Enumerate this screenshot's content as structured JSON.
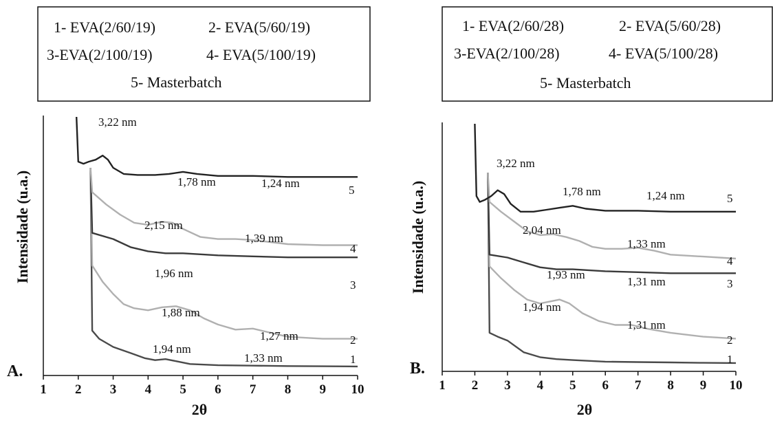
{
  "chart_data": [
    {
      "type": "line",
      "panel_label": "A.",
      "xlabel": "2θ",
      "ylabel": "Intensidade (u.a.)",
      "xlim": [
        1,
        10
      ],
      "xticks": [
        "1",
        "2",
        "3",
        "4",
        "5",
        "6",
        "7",
        "8",
        "9",
        "10"
      ],
      "legend": [
        "1- EVA(2/60/19)",
        "2- EVA(5/60/19)",
        "3-EVA(2/100/19)",
        "4- EVA(5/100/19)",
        "5- Masterbatch"
      ],
      "series": [
        {
          "name": "1",
          "color": "#4a4a4a",
          "x": [
            2.35,
            2.4,
            2.6,
            3.0,
            3.5,
            3.9,
            4.2,
            4.5,
            4.8,
            5.2,
            6.0,
            7.0,
            8.0,
            9.0,
            10.0
          ],
          "y": [
            100,
            20,
            16,
            12,
            9,
            6.5,
            5.5,
            6.0,
            5.0,
            3.6,
            3.0,
            2.8,
            2.6,
            2.5,
            2.4
          ]
        },
        {
          "name": "2",
          "color": "#b0b0b0",
          "x": [
            2.35,
            2.4,
            2.7,
            3.0,
            3.3,
            3.6,
            4.0,
            4.4,
            4.8,
            5.2,
            5.6,
            6.0,
            6.5,
            7.0,
            7.5,
            8.0,
            9.0,
            10.0
          ],
          "y": [
            100,
            52,
            44,
            38,
            33,
            31,
            30,
            31.5,
            32,
            30,
            26,
            23,
            20.5,
            21,
            19,
            17,
            16,
            16
          ]
        },
        {
          "name": "3",
          "color": "#3a3a3a",
          "x": [
            2.35,
            2.4,
            3.0,
            3.5,
            4.0,
            4.5,
            5.0,
            5.5,
            6.0,
            7.0,
            8.0,
            9.0,
            10.0
          ],
          "y": [
            100,
            68,
            65,
            61,
            59,
            58,
            58,
            57.5,
            57,
            56.5,
            56,
            56,
            56
          ]
        },
        {
          "name": "4",
          "color": "#b0b0b0",
          "x": [
            2.35,
            2.4,
            2.8,
            3.2,
            3.6,
            4.0,
            4.4,
            4.7,
            5.0,
            5.5,
            6.0,
            6.5,
            7.0,
            7.5,
            8.0,
            9.0,
            10.0
          ],
          "y": [
            100,
            88,
            82,
            77,
            73,
            72,
            73.5,
            73,
            70,
            66,
            65,
            65,
            64.5,
            63.5,
            62.5,
            62,
            62
          ]
        },
        {
          "name": "5",
          "color": "#222222",
          "x": [
            1.95,
            2.0,
            2.15,
            2.3,
            2.5,
            2.7,
            2.85,
            3.0,
            3.3,
            3.7,
            4.2,
            4.6,
            5.0,
            5.4,
            6.0,
            7.0,
            8.0,
            9.0,
            10.0
          ],
          "y": [
            125,
            103,
            102,
            103,
            104,
            106,
            104,
            100,
            97,
            96.5,
            96.5,
            97,
            98,
            97,
            96,
            96,
            95.5,
            95.5,
            95.5
          ]
        }
      ],
      "annotations": [
        "3,22 nm",
        "1,78 nm",
        "1,24 nm",
        "2,15 nm",
        "1,39 nm",
        "1,96 nm",
        "1,88 nm",
        "1,27 nm",
        "1,94 nm",
        "1,33  nm"
      ],
      "end_labels": [
        "5",
        "4",
        "3",
        "2",
        "1"
      ]
    },
    {
      "type": "line",
      "panel_label": "B.",
      "xlabel": "2θ",
      "ylabel": "Intensidade (u.a.)",
      "xlim": [
        1,
        10
      ],
      "xticks": [
        "1",
        "2",
        "3",
        "4",
        "5",
        "6",
        "7",
        "8",
        "9",
        "10"
      ],
      "legend": [
        "1- EVA(2/60/28)",
        "2- EVA(5/60/28)",
        "3-EVA(2/100/28)",
        "4- EVA(5/100/28)",
        "5- Masterbatch"
      ],
      "series": [
        {
          "name": "1",
          "color": "#4a4a4a",
          "x": [
            2.4,
            2.45,
            2.7,
            3.0,
            3.5,
            4.0,
            4.5,
            5.0,
            6.0,
            7.0,
            8.0,
            9.0,
            10.0
          ],
          "y": [
            100,
            18,
            16,
            14,
            8,
            5.5,
            4.5,
            4.0,
            3.2,
            3.0,
            2.8,
            2.6,
            2.5
          ]
        },
        {
          "name": "2",
          "color": "#b0b0b0",
          "x": [
            2.4,
            2.45,
            2.8,
            3.2,
            3.6,
            4.0,
            4.3,
            4.6,
            4.9,
            5.3,
            5.8,
            6.3,
            6.8,
            7.3,
            8.0,
            9.0,
            10.0
          ],
          "y": [
            100,
            52,
            46,
            40,
            35,
            33,
            34,
            35,
            33,
            28,
            24,
            22,
            22,
            20,
            18,
            16,
            15
          ]
        },
        {
          "name": "3",
          "color": "#3a3a3a",
          "x": [
            2.4,
            2.45,
            3.0,
            3.5,
            4.0,
            4.5,
            5.0,
            6.0,
            7.0,
            8.0,
            9.0,
            10.0
          ],
          "y": [
            100,
            58,
            56.5,
            54,
            51.5,
            50.5,
            50.5,
            49.5,
            49,
            48.5,
            48.5,
            48.5
          ]
        },
        {
          "name": "4",
          "color": "#b0b0b0",
          "x": [
            2.4,
            2.45,
            2.8,
            3.2,
            3.6,
            4.0,
            4.4,
            4.8,
            5.2,
            5.6,
            6.0,
            6.5,
            7.0,
            7.5,
            8.0,
            9.0,
            10.0
          ],
          "y": [
            100,
            85,
            80,
            75,
            70,
            68,
            68.5,
            67,
            65,
            62,
            61,
            61,
            61.5,
            60,
            58,
            57,
            56
          ]
        },
        {
          "name": "5",
          "color": "#222222",
          "x": [
            2.0,
            2.05,
            2.15,
            2.3,
            2.5,
            2.7,
            2.9,
            3.1,
            3.4,
            3.8,
            4.2,
            4.6,
            5.0,
            5.4,
            6.0,
            7.0,
            8.0,
            9.0,
            10.0
          ],
          "y": [
            125,
            88,
            85,
            86,
            88,
            91,
            89,
            84,
            80,
            80,
            81,
            82,
            83,
            81.5,
            80.5,
            80.5,
            80,
            80,
            80
          ]
        }
      ],
      "annotations": [
        "3,22 nm",
        "1,78 nm",
        "1,24 nm",
        "2,04 nm",
        "1,33 nm",
        "1,93 nm",
        "1,31 nm",
        "1,94 nm",
        "1,31 nm"
      ],
      "end_labels": [
        "5",
        "4",
        "3",
        "2",
        "1"
      ]
    }
  ]
}
